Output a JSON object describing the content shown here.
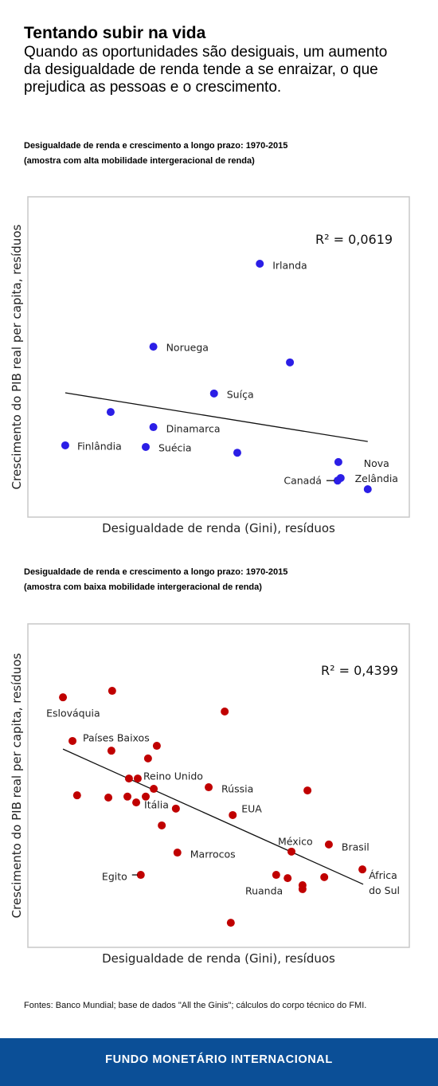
{
  "header": {
    "title": "Tentando subir na vida",
    "subtitle": "Quando as oportunidades são desiguais, um aumento da desigualdade de renda tende a se enraizar, o que prejudica as pessoas e o crescimento."
  },
  "chart_data": [
    {
      "type": "scatter",
      "title": "Desigualdade de renda e crescimento a longo prazo: 1970-2015",
      "subtitle": "(amostra com alta mobilidade intergeracional de renda)",
      "x_label": "Desigualdade de renda (Gini), resíduos",
      "y_label": "Crescimento do PIB real per capita, resíduos",
      "annotation": "R² = 0,0619",
      "color": "#2b1ee6",
      "xlim": [
        0,
        100
      ],
      "ylim": [
        0,
        100
      ],
      "x": [
        60.8,
        32.9,
        68.7,
        48.8,
        21.7,
        32.9,
        9.8,
        30.9,
        54.9,
        81.4,
        82.0,
        81.2,
        89.1
      ],
      "y": [
        79.1,
        53.2,
        48.3,
        38.6,
        32.8,
        28.1,
        22.4,
        21.9,
        20.1,
        17.2,
        12.2,
        11.4,
        8.7
      ],
      "labels": [
        "Irlanda",
        "Noruega",
        null,
        "Suíça",
        null,
        "Dinamarca",
        "Finlândia",
        "Suécia",
        null,
        null,
        null,
        "Canadá",
        "Nova Zelândia"
      ],
      "trendline": {
        "x": [
          9.8,
          89.1
        ],
        "y": [
          38.8,
          23.6
        ]
      }
    },
    {
      "type": "scatter",
      "title": "Desigualdade de renda e crescimento a longo prazo: 1970-2015",
      "subtitle": "(amostra com baixa mobilidade intergeracional de renda)",
      "x_label": "Desigualdade de renda (Gini), resíduos",
      "y_label": "Crescimento do PIB real per capita, resíduos",
      "annotation": "R² = 0,4399",
      "color": "#c00000",
      "xlim": [
        0,
        100
      ],
      "ylim": [
        0,
        100
      ],
      "x": [
        9.2,
        22.1,
        51.6,
        11.7,
        21.9,
        33.8,
        31.5,
        28.8,
        26.5,
        33.0,
        47.4,
        73.3,
        12.9,
        21.1,
        26.1,
        30.9,
        28.4,
        38.8,
        53.7,
        35.1,
        69.1,
        78.9,
        39.2,
        87.7,
        29.6,
        68.1,
        65.1,
        72.0,
        72.0,
        77.7,
        53.2
      ],
      "y": [
        77.3,
        79.3,
        72.9,
        63.8,
        60.8,
        62.3,
        58.4,
        52.2,
        52.2,
        49.0,
        49.5,
        48.5,
        47.0,
        46.3,
        46.6,
        46.6,
        44.8,
        42.9,
        40.9,
        37.7,
        29.6,
        31.8,
        29.3,
        24.1,
        22.4,
        21.4,
        22.4,
        19.2,
        18.0,
        21.7,
        7.6
      ],
      "labels": [
        "Eslováquia",
        null,
        null,
        "Países Baixos",
        null,
        null,
        null,
        "Reino Unido",
        null,
        null,
        "Rússia",
        null,
        null,
        null,
        null,
        null,
        "Itália",
        null,
        "EUA",
        null,
        "México",
        "Brasil",
        "Marrocos",
        "África do Sul",
        "Egito",
        "Ruanda",
        null,
        null,
        null,
        null,
        null
      ],
      "trendline": {
        "x": [
          9.2,
          87.9
        ],
        "y": [
          61.3,
          19.5
        ]
      }
    }
  ],
  "source": "Fontes: Banco Mundial; base de dados \"All the Ginis\"; cálculos do corpo técnico do FMI.",
  "footer": "FUNDO MONETÁRIO INTERNACIONAL"
}
